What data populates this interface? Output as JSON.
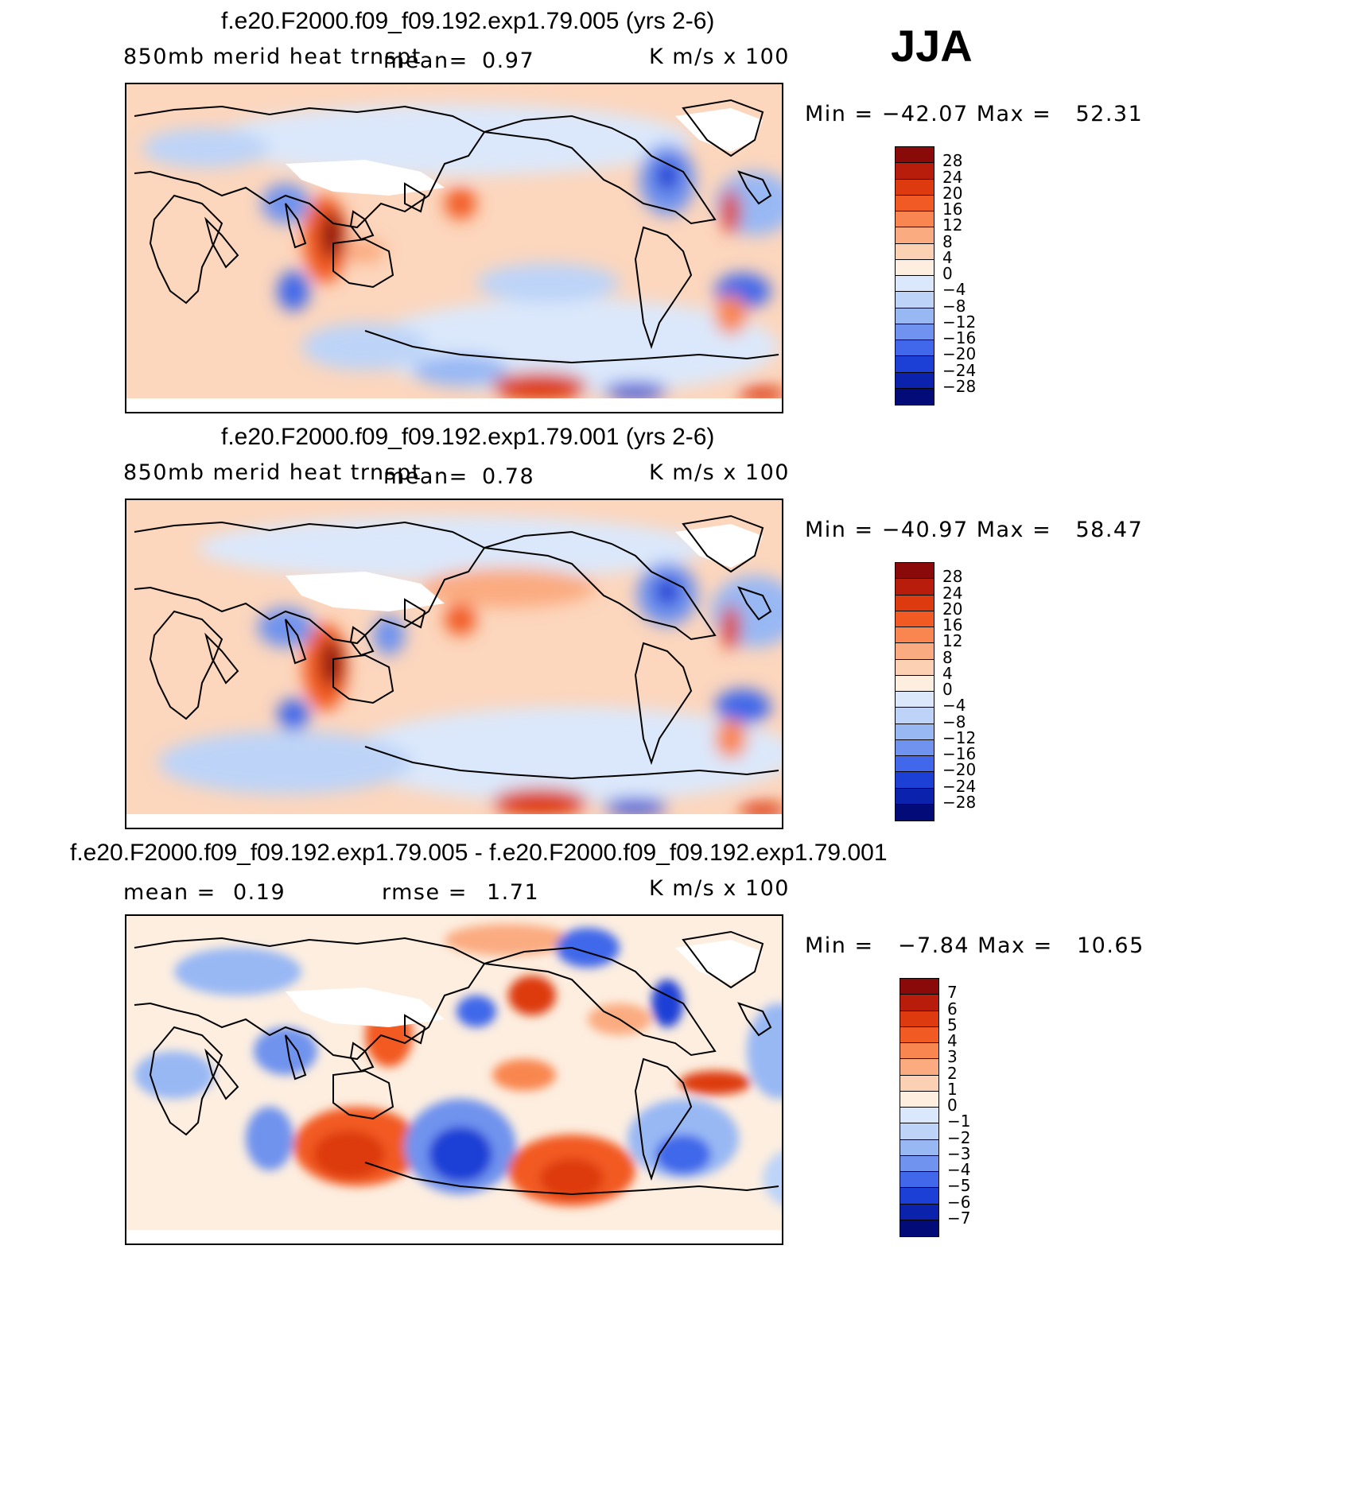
{
  "season": "JJA",
  "panels": [
    {
      "title": "f.e20.F2000.f09_f09.192.exp1.79.005 (yrs 2-6)",
      "variable": "850mb merid heat trnspt",
      "mean_label": "mean=",
      "mean_value": "0.97",
      "units": "K m/s x 100",
      "minmax": "Min = −42.07 Max =   52.31",
      "min": -42.07,
      "max": 52.31
    },
    {
      "title": "f.e20.F2000.f09_f09.192.exp1.79.001 (yrs 2-6)",
      "variable": "850mb merid heat trnspt",
      "mean_label": "mean=",
      "mean_value": "0.78",
      "units": "K m/s x 100",
      "minmax": "Min = −40.97 Max =   58.47",
      "min": -40.97,
      "max": 58.47
    },
    {
      "title": "f.e20.F2000.f09_f09.192.exp1.79.005 - f.e20.F2000.f09_f09.192.exp1.79.001",
      "mean_label": "mean =",
      "mean_value": "0.19",
      "rmse_label": "rmse =",
      "rmse_value": "1.71",
      "units": "K m/s x 100",
      "minmax": "Min =   −7.84 Max =   10.65",
      "min": -7.84,
      "max": 10.65
    }
  ],
  "colorbars": {
    "main": {
      "labels": [
        "28",
        "24",
        "20",
        "16",
        "12",
        "8",
        "4",
        "0",
        "−4",
        "−8",
        "−12",
        "−16",
        "−20",
        "−24",
        "−28"
      ],
      "colors": [
        "#8a0a0a",
        "#b81d0b",
        "#dd3a10",
        "#f25a23",
        "#f98650",
        "#fbab80",
        "#fcd0b2",
        "#fdeee0",
        "#dbe8fb",
        "#bdd4f8",
        "#98b8f4",
        "#6f93ee",
        "#4168ea",
        "#1c3fd6",
        "#0a22ac",
        "#020b78"
      ]
    },
    "diff": {
      "labels": [
        "7",
        "6",
        "5",
        "4",
        "3",
        "2",
        "1",
        "0",
        "−1",
        "−2",
        "−3",
        "−4",
        "−5",
        "−6",
        "−7"
      ],
      "colors": [
        "#8a0a0a",
        "#b81d0b",
        "#dd3a10",
        "#f25a23",
        "#f98650",
        "#fbab80",
        "#fcd0b2",
        "#fdeee0",
        "#dbe8fb",
        "#bdd4f8",
        "#98b8f4",
        "#6f93ee",
        "#4168ea",
        "#1c3fd6",
        "#0a22ac",
        "#020b78"
      ]
    }
  }
}
